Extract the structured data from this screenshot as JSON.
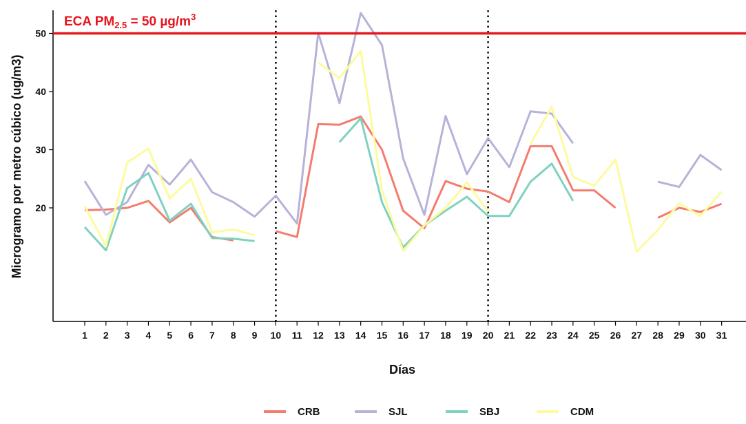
{
  "chart_data": {
    "type": "line",
    "title": "",
    "xlabel": "Días",
    "ylabel": "Microgramo por metro cúbico (ug/m3)",
    "x": [
      1,
      2,
      3,
      4,
      5,
      6,
      7,
      8,
      9,
      10,
      11,
      12,
      13,
      14,
      15,
      16,
      17,
      18,
      19,
      20,
      21,
      22,
      23,
      24,
      25,
      26,
      27,
      28,
      29,
      30,
      31
    ],
    "xticks": [
      "1",
      "2",
      "3",
      "4",
      "5",
      "6",
      "7",
      "8",
      "9",
      "10",
      "11",
      "12",
      "13",
      "14",
      "15",
      "16",
      "17",
      "18",
      "19",
      "20",
      "21",
      "22",
      "23",
      "24",
      "25",
      "26",
      "27",
      "28",
      "29",
      "30",
      "31"
    ],
    "yticks": [
      "20",
      "30",
      "40",
      "50"
    ],
    "ylim": [
      11.5,
      55
    ],
    "grid": false,
    "legend_position": "bottom",
    "reference_line": {
      "y": 50,
      "color": "#e8141c",
      "label_prefix": "ECA PM",
      "label_sub": "2.5",
      "label_mid": " = 50 µg/m",
      "label_sup": "3"
    },
    "vertical_markers": [
      10,
      20
    ],
    "series": [
      {
        "name": "CRB",
        "color": "#f47c6e",
        "values": [
          19.6,
          19.7,
          20.0,
          21.2,
          17.5,
          20.0,
          15.0,
          14.4,
          null,
          16.0,
          15.0,
          34.4,
          34.3,
          35.7,
          30.0,
          19.5,
          16.5,
          24.6,
          23.3,
          22.8,
          21.0,
          30.6,
          30.6,
          23.0,
          23.0,
          20.0,
          null,
          18.3,
          20.0,
          19.3,
          20.7
        ]
      },
      {
        "name": "SJL",
        "color": "#b7b2d8",
        "values": [
          24.6,
          18.8,
          21.0,
          27.4,
          24.0,
          28.3,
          22.7,
          21.0,
          18.5,
          22.1,
          17.3,
          50.1,
          38.0,
          53.5,
          48.0,
          28.5,
          18.8,
          35.8,
          25.8,
          32.0,
          27.0,
          36.6,
          36.2,
          31.1,
          null,
          null,
          null,
          24.5,
          23.6,
          29.1,
          26.5
        ]
      },
      {
        "name": "SBJ",
        "color": "#7fd1c0",
        "values": [
          16.7,
          12.7,
          23.4,
          26.0,
          17.8,
          20.7,
          14.8,
          14.7,
          14.3,
          null,
          null,
          null,
          31.3,
          35.4,
          21.0,
          13.2,
          17.0,
          19.5,
          21.9,
          18.6,
          18.6,
          24.5,
          27.6,
          21.2,
          null,
          null,
          null,
          null,
          null,
          null,
          null
        ]
      },
      {
        "name": "CDM",
        "color": "#fdfb9e",
        "values": [
          20.3,
          13.4,
          27.8,
          30.2,
          21.6,
          25.0,
          15.8,
          16.3,
          15.3,
          null,
          null,
          45.0,
          42.3,
          47.0,
          23.0,
          12.6,
          17.0,
          20.0,
          24.4,
          19.3,
          null,
          31.0,
          37.4,
          25.3,
          23.8,
          28.3,
          12.5,
          16.2,
          20.8,
          18.6,
          22.8
        ]
      }
    ]
  }
}
